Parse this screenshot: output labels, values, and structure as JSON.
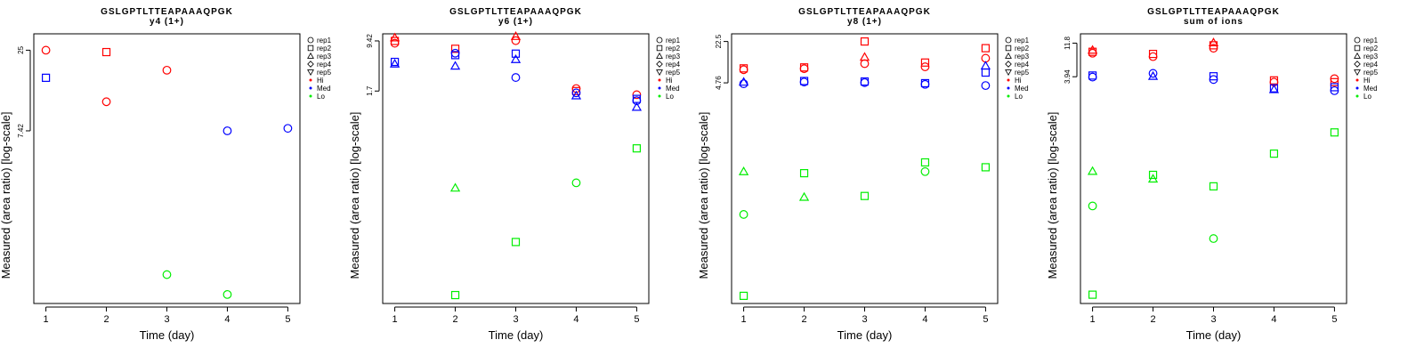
{
  "chart_data": [
    {
      "type": "scatter",
      "title": "GSLGPTLTTEAPAAAQPGK",
      "subtitle": "y4 (1+)",
      "xlabel": "Time (day)",
      "ylabel": "Measured (area ratio) [log-scale]",
      "x_ticks": [
        "1",
        "2",
        "3",
        "4",
        "5"
      ],
      "y_ticks": [
        "25",
        "7.42"
      ],
      "y_scale": "log",
      "ylim": [
        0.55,
        32
      ],
      "xlim": [
        0.8,
        5.2
      ],
      "grid": false,
      "points": [
        {
          "x": 1,
          "y": 25,
          "shape": "circle",
          "group": "Hi"
        },
        {
          "x": 1,
          "y": 16.5,
          "shape": "square",
          "group": "Med"
        },
        {
          "x": 2,
          "y": 24.3,
          "shape": "square",
          "group": "Hi"
        },
        {
          "x": 2,
          "y": 11.5,
          "shape": "circle",
          "group": "Hi"
        },
        {
          "x": 3,
          "y": 18.5,
          "shape": "circle",
          "group": "Hi"
        },
        {
          "x": 3,
          "y": 0.85,
          "shape": "circle",
          "group": "Lo"
        },
        {
          "x": 4,
          "y": 7.42,
          "shape": "circle",
          "group": "Med"
        },
        {
          "x": 4,
          "y": 0.63,
          "shape": "circle",
          "group": "Lo"
        },
        {
          "x": 5,
          "y": 7.7,
          "shape": "circle",
          "group": "Med"
        }
      ]
    },
    {
      "type": "scatter",
      "title": "GSLGPTLTTEAPAAAQPGK",
      "subtitle": "y6 (1+)",
      "xlabel": "Time (day)",
      "ylabel": "Measured (area ratio) [log-scale]",
      "x_ticks": [
        "1",
        "2",
        "3",
        "4",
        "5"
      ],
      "y_ticks": [
        "9.42",
        "1.7"
      ],
      "y_scale": "log",
      "ylim": [
        0.0012,
        12
      ],
      "xlim": [
        0.8,
        5.2
      ],
      "grid": false,
      "points": [
        {
          "x": 1,
          "y": 10.5,
          "shape": "triangle-up",
          "group": "Hi"
        },
        {
          "x": 1,
          "y": 9.4,
          "shape": "square",
          "group": "Hi"
        },
        {
          "x": 1,
          "y": 8.7,
          "shape": "circle",
          "group": "Hi"
        },
        {
          "x": 1,
          "y": 4.6,
          "shape": "square",
          "group": "Med"
        },
        {
          "x": 1,
          "y": 4.3,
          "shape": "triangle-up",
          "group": "Med"
        },
        {
          "x": 2,
          "y": 7.2,
          "shape": "square",
          "group": "Hi"
        },
        {
          "x": 2,
          "y": 6.2,
          "shape": "circle",
          "group": "Med"
        },
        {
          "x": 2,
          "y": 5.8,
          "shape": "square",
          "group": "Med"
        },
        {
          "x": 2,
          "y": 4.0,
          "shape": "triangle-up",
          "group": "Med"
        },
        {
          "x": 2,
          "y": 0.062,
          "shape": "triangle-up",
          "group": "Lo"
        },
        {
          "x": 2,
          "y": 0.0016,
          "shape": "square",
          "group": "Lo"
        },
        {
          "x": 3,
          "y": 11.0,
          "shape": "triangle-up",
          "group": "Hi"
        },
        {
          "x": 3,
          "y": 9.5,
          "shape": "circle",
          "group": "Hi"
        },
        {
          "x": 3,
          "y": 6.1,
          "shape": "square",
          "group": "Med"
        },
        {
          "x": 3,
          "y": 5.0,
          "shape": "triangle-up",
          "group": "Med"
        },
        {
          "x": 3,
          "y": 2.7,
          "shape": "circle",
          "group": "Med"
        },
        {
          "x": 3,
          "y": 0.0098,
          "shape": "square",
          "group": "Lo"
        },
        {
          "x": 4,
          "y": 1.85,
          "shape": "circle",
          "group": "Hi"
        },
        {
          "x": 4,
          "y": 1.7,
          "shape": "square",
          "group": "Hi"
        },
        {
          "x": 4,
          "y": 1.6,
          "shape": "circle",
          "group": "Med"
        },
        {
          "x": 4,
          "y": 1.45,
          "shape": "triangle-up",
          "group": "Med"
        },
        {
          "x": 4,
          "y": 0.074,
          "shape": "circle",
          "group": "Lo"
        },
        {
          "x": 5,
          "y": 1.5,
          "shape": "circle",
          "group": "Hi"
        },
        {
          "x": 5,
          "y": 1.3,
          "shape": "square",
          "group": "Med"
        },
        {
          "x": 5,
          "y": 1.22,
          "shape": "circle",
          "group": "Med"
        },
        {
          "x": 5,
          "y": 0.98,
          "shape": "triangle-up",
          "group": "Med"
        },
        {
          "x": 5,
          "y": 0.24,
          "shape": "square",
          "group": "Lo"
        }
      ]
    },
    {
      "type": "scatter",
      "title": "GSLGPTLTTEAPAAAQPGK",
      "subtitle": "y8 (1+)",
      "xlabel": "Time (day)",
      "ylabel": "Measured (area ratio) [log-scale]",
      "x_ticks": [
        "1",
        "2",
        "3",
        "4",
        "5"
      ],
      "y_ticks": [
        "22.5",
        "4.76"
      ],
      "y_scale": "log",
      "ylim": [
        0.0012,
        30
      ],
      "xlim": [
        0.8,
        5.2
      ],
      "grid": false,
      "points": [
        {
          "x": 1,
          "y": 8.2,
          "shape": "square",
          "group": "Hi"
        },
        {
          "x": 1,
          "y": 7.8,
          "shape": "circle",
          "group": "Hi"
        },
        {
          "x": 1,
          "y": 4.9,
          "shape": "triangle-up",
          "group": "Med"
        },
        {
          "x": 1,
          "y": 4.6,
          "shape": "circle",
          "group": "Med"
        },
        {
          "x": 1,
          "y": 0.17,
          "shape": "triangle-up",
          "group": "Lo"
        },
        {
          "x": 1,
          "y": 0.034,
          "shape": "circle",
          "group": "Lo"
        },
        {
          "x": 1,
          "y": 0.0016,
          "shape": "square",
          "group": "Lo"
        },
        {
          "x": 2,
          "y": 8.5,
          "shape": "square",
          "group": "Hi"
        },
        {
          "x": 2,
          "y": 8.1,
          "shape": "circle",
          "group": "Hi"
        },
        {
          "x": 2,
          "y": 5.1,
          "shape": "square",
          "group": "Med"
        },
        {
          "x": 2,
          "y": 4.9,
          "shape": "circle",
          "group": "Med"
        },
        {
          "x": 2,
          "y": 0.16,
          "shape": "square",
          "group": "Lo"
        },
        {
          "x": 2,
          "y": 0.065,
          "shape": "triangle-up",
          "group": "Lo"
        },
        {
          "x": 3,
          "y": 22.5,
          "shape": "square",
          "group": "Hi"
        },
        {
          "x": 3,
          "y": 12.5,
          "shape": "triangle-up",
          "group": "Hi"
        },
        {
          "x": 3,
          "y": 9.8,
          "shape": "circle",
          "group": "Hi"
        },
        {
          "x": 3,
          "y": 5.0,
          "shape": "square",
          "group": "Med"
        },
        {
          "x": 3,
          "y": 4.8,
          "shape": "circle",
          "group": "Med"
        },
        {
          "x": 3,
          "y": 0.068,
          "shape": "square",
          "group": "Lo"
        },
        {
          "x": 4,
          "y": 10.2,
          "shape": "square",
          "group": "Hi"
        },
        {
          "x": 4,
          "y": 8.7,
          "shape": "circle",
          "group": "Hi"
        },
        {
          "x": 4,
          "y": 4.7,
          "shape": "square",
          "group": "Med"
        },
        {
          "x": 4,
          "y": 4.5,
          "shape": "circle",
          "group": "Med"
        },
        {
          "x": 4,
          "y": 0.24,
          "shape": "square",
          "group": "Lo"
        },
        {
          "x": 4,
          "y": 0.17,
          "shape": "circle",
          "group": "Lo"
        },
        {
          "x": 5,
          "y": 17.5,
          "shape": "square",
          "group": "Hi"
        },
        {
          "x": 5,
          "y": 12.0,
          "shape": "circle",
          "group": "Hi"
        },
        {
          "x": 5,
          "y": 9.0,
          "shape": "triangle-up",
          "group": "Med"
        },
        {
          "x": 5,
          "y": 7.0,
          "shape": "square",
          "group": "Med"
        },
        {
          "x": 5,
          "y": 4.3,
          "shape": "circle",
          "group": "Med"
        },
        {
          "x": 5,
          "y": 0.2,
          "shape": "square",
          "group": "Lo"
        }
      ]
    },
    {
      "type": "scatter",
      "title": "GSLGPTLTTEAPAAAQPGK",
      "subtitle": "sum of ions",
      "xlabel": "Time (day)",
      "ylabel": "Measured (area ratio) [log-scale]",
      "x_ticks": [
        "1",
        "2",
        "3",
        "4",
        "5"
      ],
      "y_ticks": [
        "11.8",
        "3.94"
      ],
      "y_scale": "log",
      "ylim": [
        0.0024,
        16
      ],
      "xlim": [
        0.8,
        5.2
      ],
      "grid": false,
      "points": [
        {
          "x": 1,
          "y": 9.4,
          "shape": "triangle-up",
          "group": "Hi"
        },
        {
          "x": 1,
          "y": 8.9,
          "shape": "square",
          "group": "Hi"
        },
        {
          "x": 1,
          "y": 8.5,
          "shape": "circle",
          "group": "Hi"
        },
        {
          "x": 1,
          "y": 4.1,
          "shape": "square",
          "group": "Med"
        },
        {
          "x": 1,
          "y": 3.9,
          "shape": "circle",
          "group": "Med"
        },
        {
          "x": 1,
          "y": 0.18,
          "shape": "triangle-up",
          "group": "Lo"
        },
        {
          "x": 1,
          "y": 0.058,
          "shape": "circle",
          "group": "Lo"
        },
        {
          "x": 1,
          "y": 0.0032,
          "shape": "square",
          "group": "Lo"
        },
        {
          "x": 2,
          "y": 8.3,
          "shape": "square",
          "group": "Hi"
        },
        {
          "x": 2,
          "y": 7.6,
          "shape": "circle",
          "group": "Hi"
        },
        {
          "x": 2,
          "y": 4.4,
          "shape": "circle",
          "group": "Med"
        },
        {
          "x": 2,
          "y": 4.0,
          "shape": "triangle-up",
          "group": "Med"
        },
        {
          "x": 2,
          "y": 0.16,
          "shape": "square",
          "group": "Lo"
        },
        {
          "x": 2,
          "y": 0.14,
          "shape": "triangle-up",
          "group": "Lo"
        },
        {
          "x": 3,
          "y": 12.0,
          "shape": "triangle-up",
          "group": "Hi"
        },
        {
          "x": 3,
          "y": 11.0,
          "shape": "square",
          "group": "Hi"
        },
        {
          "x": 3,
          "y": 10.0,
          "shape": "circle",
          "group": "Hi"
        },
        {
          "x": 3,
          "y": 4.0,
          "shape": "square",
          "group": "Med"
        },
        {
          "x": 3,
          "y": 3.6,
          "shape": "circle",
          "group": "Med"
        },
        {
          "x": 3,
          "y": 0.11,
          "shape": "square",
          "group": "Lo"
        },
        {
          "x": 3,
          "y": 0.02,
          "shape": "circle",
          "group": "Lo"
        },
        {
          "x": 4,
          "y": 3.5,
          "shape": "square",
          "group": "Hi"
        },
        {
          "x": 4,
          "y": 3.3,
          "shape": "circle",
          "group": "Hi"
        },
        {
          "x": 4,
          "y": 2.7,
          "shape": "square",
          "group": "Med"
        },
        {
          "x": 4,
          "y": 2.6,
          "shape": "triangle-up",
          "group": "Med"
        },
        {
          "x": 4,
          "y": 0.32,
          "shape": "square",
          "group": "Lo"
        },
        {
          "x": 5,
          "y": 3.7,
          "shape": "circle",
          "group": "Hi"
        },
        {
          "x": 5,
          "y": 3.3,
          "shape": "square",
          "group": "Hi"
        },
        {
          "x": 5,
          "y": 2.8,
          "shape": "square",
          "group": "Med"
        },
        {
          "x": 5,
          "y": 2.5,
          "shape": "circle",
          "group": "Med"
        },
        {
          "x": 5,
          "y": 0.64,
          "shape": "square",
          "group": "Lo"
        }
      ]
    }
  ],
  "legend": {
    "placement": "right",
    "shapes": [
      {
        "label": "rep1",
        "icon": "circle-icon"
      },
      {
        "label": "rep2",
        "icon": "square-icon"
      },
      {
        "label": "rep3",
        "icon": "triangle-up-icon"
      },
      {
        "label": "rep4",
        "icon": "diamond-icon"
      },
      {
        "label": "rep5",
        "icon": "triangle-down-icon"
      }
    ],
    "groups": [
      {
        "label": "Hi",
        "color": "#ff0000"
      },
      {
        "label": "Med",
        "color": "#0000ff"
      },
      {
        "label": "Lo",
        "color": "#00ee00"
      }
    ]
  },
  "colors": {
    "Hi": "#ff0000",
    "Med": "#0000ff",
    "Lo": "#00ee00"
  }
}
